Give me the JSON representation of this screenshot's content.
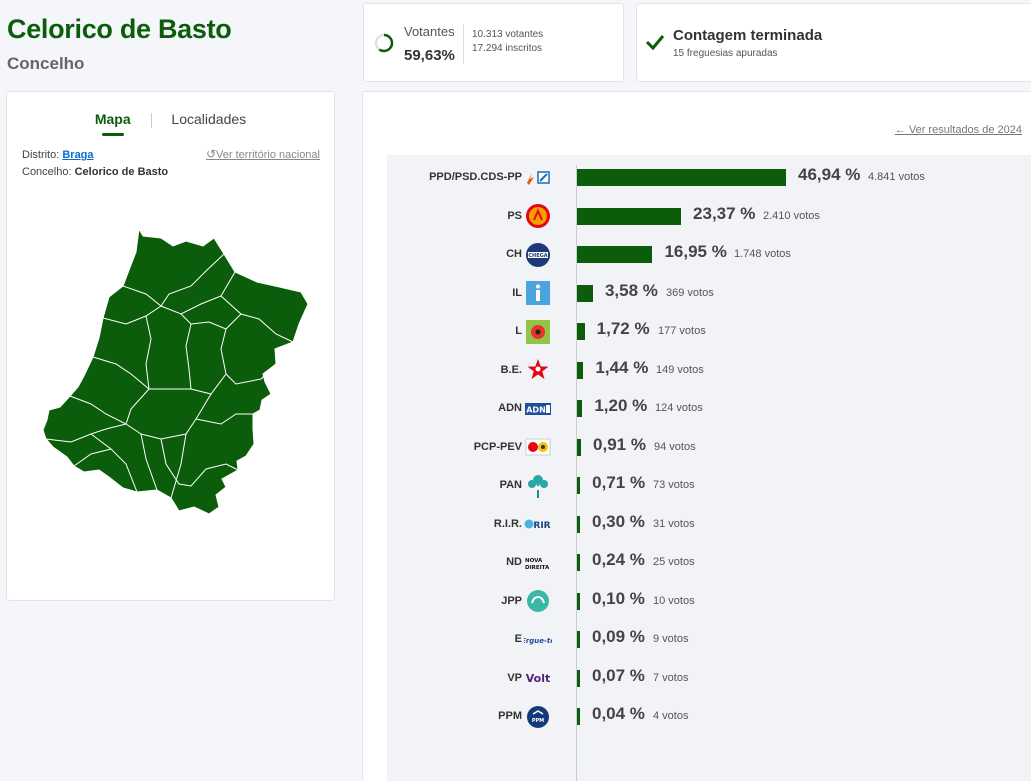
{
  "header": {
    "title": "Celorico de Basto",
    "subtitle": "Concelho"
  },
  "map_panel": {
    "tabs": [
      "Mapa",
      "Localidades"
    ],
    "active_tab": "Mapa",
    "district_label": "Distrito:",
    "district_value": "Braga",
    "municipality_label": "Concelho:",
    "municipality_value": "Celorico de Basto",
    "national_link": "Ver território nacional",
    "map_color": "#0b5d0b"
  },
  "turnout": {
    "label": "Votantes",
    "percent": "59,63%",
    "percent_value": 59.63,
    "voters": "10.313 votantes",
    "registered": "17.294 inscritos"
  },
  "count_status": {
    "title": "Contagem terminada",
    "subtitle": "15 freguesias apuradas"
  },
  "results": {
    "prev_link": "Ver resultados de 2024",
    "bar_color": "#0b5d0b"
  },
  "chart_data": {
    "type": "bar",
    "orientation": "horizontal",
    "categories": [
      "PPD/PSD.CDS-PP",
      "PS",
      "CH",
      "IL",
      "L",
      "B.E.",
      "ADN",
      "PCP-PEV",
      "PAN",
      "R.I.R.",
      "ND",
      "JPP",
      "E",
      "VP",
      "PPM"
    ],
    "values": [
      46.94,
      23.37,
      16.95,
      3.58,
      1.72,
      1.44,
      1.2,
      0.91,
      0.71,
      0.3,
      0.24,
      0.1,
      0.09,
      0.07,
      0.04
    ],
    "value_labels": [
      "46,94 %",
      "23,37 %",
      "16,95 %",
      "3,58 %",
      "1,72 %",
      "1,44 %",
      "1,20 %",
      "0,91 %",
      "0,71 %",
      "0,30 %",
      "0,24 %",
      "0,10 %",
      "0,09 %",
      "0,07 %",
      "0,04 %"
    ],
    "vote_labels": [
      "4.841 votos",
      "2.410 votos",
      "1.748 votos",
      "369 votos",
      "177 votos",
      "149 votos",
      "124 votos",
      "94 votos",
      "73 votos",
      "31 votos",
      "25 votos",
      "10 votos",
      "9 votos",
      "7 votos",
      "4 votos"
    ],
    "logos": [
      "ad-logo",
      "ps-logo",
      "chega-logo",
      "il-logo",
      "livre-logo",
      "be-logo",
      "adn-logo",
      "cdu-logo",
      "pan-logo",
      "rir-logo",
      "nd-logo",
      "jpp-logo",
      "e-logo",
      "volt-logo",
      "ppm-logo"
    ]
  }
}
